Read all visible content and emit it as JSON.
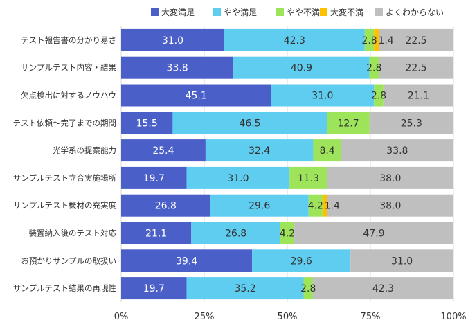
{
  "chart_data": {
    "type": "bar",
    "orientation": "horizontal",
    "stacked": true,
    "legend_position": "top",
    "grid": true,
    "xlim": [
      0,
      100
    ],
    "x_ticks": [
      "0%",
      "25%",
      "50%",
      "75%",
      "100%"
    ],
    "categories": [
      "テスト報告書の分かり易さ",
      "サンプルテスト内容・結果",
      "欠点検出に対するノウハウ",
      "テスト依頼～完了までの期間",
      "光学系の提案能力",
      "サンプルテスト立合実施場所",
      "サンプルテスト機材の充実度",
      "装置納入後のテスト対応",
      "お預かりサンプルの取扱い",
      "サンプルテスト結果の再現性"
    ],
    "series": [
      {
        "name": "大変満足",
        "color": "#4a5fc8",
        "values": [
          31.0,
          33.8,
          45.1,
          15.5,
          25.4,
          19.7,
          26.8,
          21.1,
          39.4,
          19.7
        ]
      },
      {
        "name": "やや満足",
        "color": "#5fcdf0",
        "values": [
          42.3,
          40.9,
          31.0,
          46.5,
          32.4,
          31.0,
          29.6,
          26.8,
          29.6,
          35.2
        ]
      },
      {
        "name": "やや不満",
        "color": "#9ee45a",
        "values": [
          2.8,
          2.8,
          2.8,
          12.7,
          8.4,
          11.3,
          4.2,
          4.2,
          0,
          2.8
        ]
      },
      {
        "name": "大変不満",
        "color": "#ffc000",
        "values": [
          1.4,
          0,
          0,
          0,
          0,
          0,
          1.4,
          0,
          0,
          0
        ]
      },
      {
        "name": "よくわからない",
        "color": "#bfbfbf",
        "values": [
          22.5,
          22.5,
          21.1,
          25.3,
          33.8,
          38.0,
          38.0,
          47.9,
          31.0,
          42.3
        ]
      }
    ],
    "data_labels": [
      [
        "31.0",
        "42.3",
        "2.8",
        "1.4",
        "22.5"
      ],
      [
        "33.8",
        "40.9",
        "2.8",
        "",
        "22.5"
      ],
      [
        "45.1",
        "31.0",
        "2.8",
        "",
        "21.1"
      ],
      [
        "15.5",
        "46.5",
        "12.7",
        "",
        "25.3"
      ],
      [
        "25.4",
        "32.4",
        "8.4",
        "",
        "33.8"
      ],
      [
        "19.7",
        "31.0",
        "11.3",
        "",
        "38.0"
      ],
      [
        "26.8",
        "29.6",
        "4.2",
        "1.4",
        "38.0"
      ],
      [
        "21.1",
        "26.8",
        "4.2",
        "",
        "47.9"
      ],
      [
        "39.4",
        "29.6",
        "",
        "",
        "31.0"
      ],
      [
        "19.7",
        "35.2",
        "2.8",
        "",
        "42.3"
      ]
    ]
  }
}
